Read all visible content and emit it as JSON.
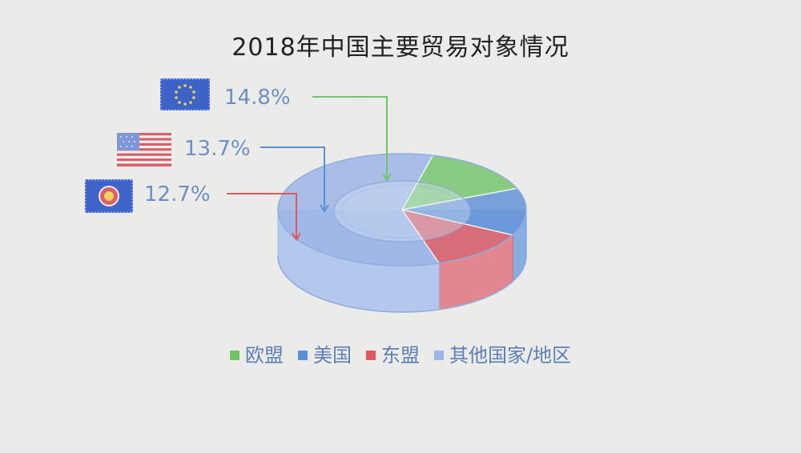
{
  "chart_data": {
    "type": "pie",
    "title": "2018年中国主要贸易对象情况",
    "slices": [
      {
        "name": "欧盟",
        "value": 14.8,
        "label": "14.8%",
        "color": "#6fc46a",
        "flag_icon": "eu-flag-icon"
      },
      {
        "name": "美国",
        "value": 13.7,
        "label": "13.7%",
        "color": "#5b8fd6",
        "flag_icon": "us-flag-icon"
      },
      {
        "name": "东盟",
        "value": 12.7,
        "label": "12.7%",
        "color": "#e0575d",
        "flag_icon": "asean-flag-icon"
      },
      {
        "name": "其他国家/地区",
        "value": 58.8,
        "color": "#9cb6e6"
      }
    ],
    "legend_position": "bottom",
    "style": "3d-donut-cylinder"
  }
}
